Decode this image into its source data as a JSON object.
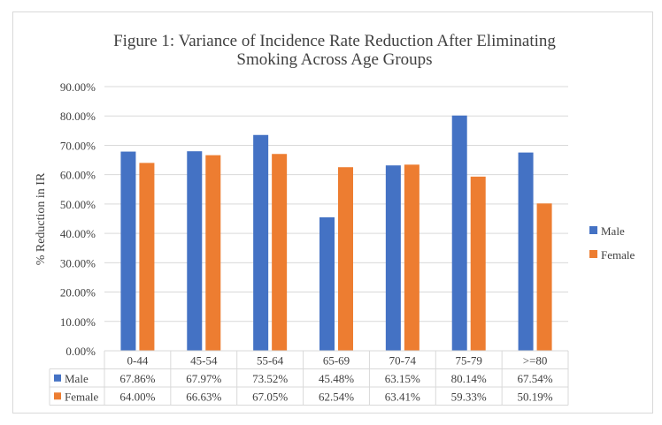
{
  "chart_data": {
    "type": "bar",
    "title_line1": "Figure 1: Variance of Incidence Rate Reduction After Eliminating",
    "title_line2": "Smoking Across Age Groups",
    "ylabel": "% Reduction in IR",
    "xlabel": "",
    "ylim": [
      0,
      90
    ],
    "y_ticks": [
      "0.00%",
      "10.00%",
      "20.00%",
      "30.00%",
      "40.00%",
      "50.00%",
      "60.00%",
      "70.00%",
      "80.00%",
      "90.00%"
    ],
    "grid": true,
    "legend_position": "right",
    "categories": [
      "0-44",
      "45-54",
      "55-64",
      "65-69",
      "70-74",
      "75-79",
      ">=80"
    ],
    "series": [
      {
        "name": "Male",
        "color": "#4472C4",
        "values": [
          67.86,
          67.97,
          73.52,
          45.48,
          63.15,
          80.14,
          67.54
        ],
        "labels": [
          "67.86%",
          "67.97%",
          "73.52%",
          "45.48%",
          "63.15%",
          "80.14%",
          "67.54%"
        ]
      },
      {
        "name": "Female",
        "color": "#ED7D31",
        "values": [
          64.0,
          66.63,
          67.05,
          62.54,
          63.41,
          59.33,
          50.19
        ],
        "labels": [
          "64.00%",
          "66.63%",
          "67.05%",
          "62.54%",
          "63.41%",
          "59.33%",
          "50.19%"
        ]
      }
    ],
    "data_table": true
  }
}
